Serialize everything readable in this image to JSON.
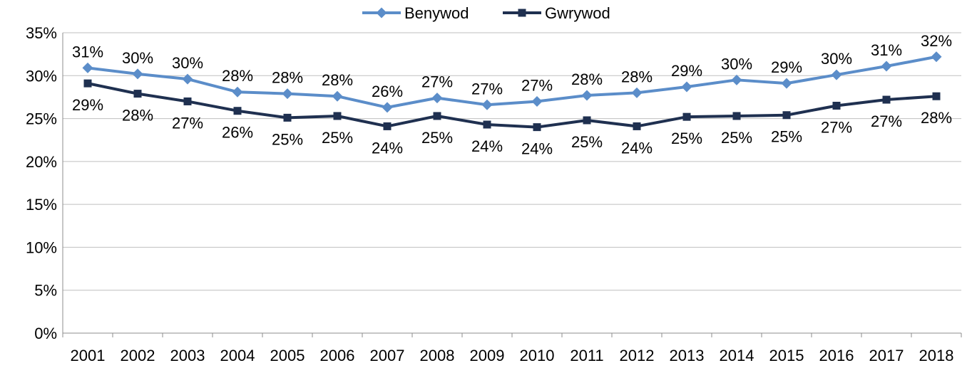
{
  "chart_data": {
    "type": "line",
    "title": "",
    "xlabel": "",
    "ylabel": "",
    "ylim": [
      0,
      35
    ],
    "y_ticks": [
      "0%",
      "5%",
      "10%",
      "15%",
      "20%",
      "25%",
      "30%",
      "35%"
    ],
    "y_tick_values": [
      0,
      5,
      10,
      15,
      20,
      25,
      30,
      35
    ],
    "grid": true,
    "legend_position": "top-center",
    "categories": [
      "2001",
      "2002",
      "2003",
      "2004",
      "2005",
      "2006",
      "2007",
      "2008",
      "2009",
      "2010",
      "2011",
      "2012",
      "2013",
      "2014",
      "2015",
      "2016",
      "2017",
      "2018"
    ],
    "series": [
      {
        "name": "Benywod",
        "color": "#5B8DC9",
        "marker": "diamond",
        "label_position": "above",
        "values": [
          30.9,
          30.2,
          29.6,
          28.1,
          27.9,
          27.6,
          26.3,
          27.4,
          26.6,
          27.0,
          27.7,
          28.0,
          28.7,
          29.5,
          29.1,
          30.1,
          31.1,
          32.2
        ],
        "labels": [
          "31%",
          "30%",
          "30%",
          "28%",
          "28%",
          "28%",
          "26%",
          "27%",
          "27%",
          "27%",
          "28%",
          "28%",
          "29%",
          "30%",
          "29%",
          "30%",
          "31%",
          "32%"
        ]
      },
      {
        "name": "Gwrywod",
        "color": "#1F3050",
        "marker": "square",
        "label_position": "below",
        "values": [
          29.1,
          27.9,
          27.0,
          25.9,
          25.1,
          25.3,
          24.1,
          25.3,
          24.3,
          24.0,
          24.8,
          24.1,
          25.2,
          25.3,
          25.4,
          26.5,
          27.2,
          27.6
        ],
        "labels": [
          "29%",
          "28%",
          "27%",
          "26%",
          "25%",
          "25%",
          "24%",
          "25%",
          "24%",
          "24%",
          "25%",
          "24%",
          "25%",
          "25%",
          "25%",
          "27%",
          "27%",
          "28%"
        ]
      }
    ]
  }
}
